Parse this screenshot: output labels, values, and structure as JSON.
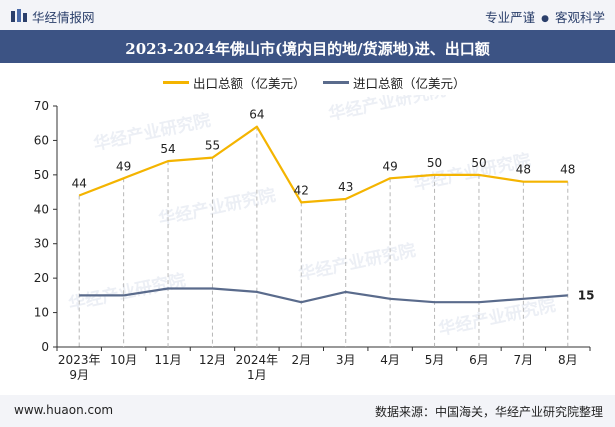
{
  "header": {
    "logo_text": "华经情报网",
    "slogan_left": "专业严谨",
    "slogan_sep": "●",
    "slogan_right": "客观科学"
  },
  "footer": {
    "website": "www.huaon.com",
    "source": "数据来源：中国海关，华经产业研究院整理"
  },
  "watermark": "华经产业研究院",
  "colors": {
    "export": "#f4b400",
    "import": "#5a6b8c",
    "title_bar": "#3c5384",
    "header_bg": "#f3f4f8"
  },
  "chart_data": {
    "type": "line",
    "title": "2023-2024年佛山市(境内目的地/货源地)进、出口额",
    "categories": [
      "2023年\n9月",
      "10月",
      "11月",
      "12月",
      "2024年\n1月",
      "2月",
      "3月",
      "4月",
      "5月",
      "6月",
      "7月",
      "8月"
    ],
    "ylim": [
      0,
      70
    ],
    "yticks": [
      0,
      10,
      20,
      30,
      40,
      50,
      60,
      70
    ],
    "grid": false,
    "legend_position": "top-center",
    "series": [
      {
        "name": "出口总额（亿美元）",
        "color": "#f4b400",
        "values": [
          44,
          49,
          54,
          55,
          64,
          42,
          43,
          49,
          50,
          50,
          48,
          48
        ],
        "labels": [
          "44",
          "49",
          "54",
          "55",
          "64",
          "42",
          "43",
          "49",
          "50",
          "50",
          "48",
          "48"
        ]
      },
      {
        "name": "进口总额（亿美元）",
        "color": "#5a6b8c",
        "values": [
          15,
          15,
          17,
          17,
          16,
          13,
          16,
          14,
          13,
          13,
          14,
          15
        ],
        "end_label": "15"
      }
    ]
  }
}
